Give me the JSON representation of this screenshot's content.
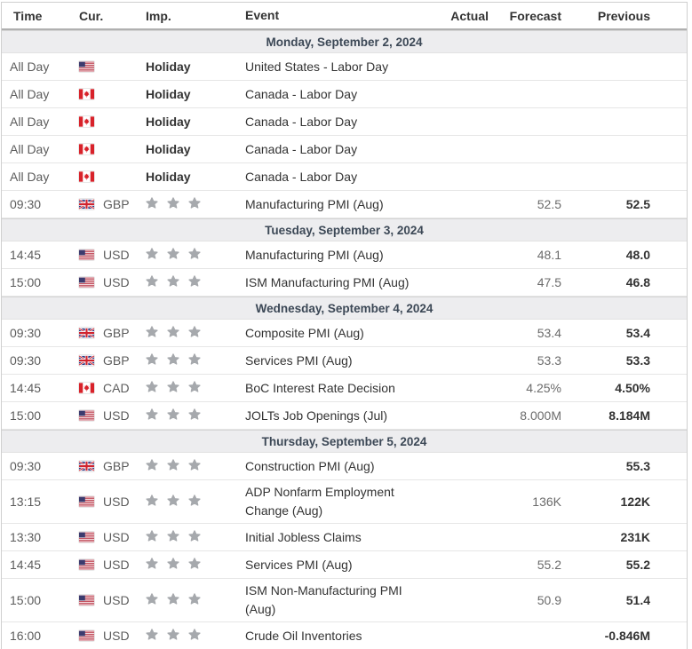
{
  "table": {
    "columns": [
      "Time",
      "Cur.",
      "Imp.",
      "Event",
      "Actual",
      "Forecast",
      "Previous"
    ],
    "sections": [
      {
        "date": "Monday, September 2, 2024",
        "rows": [
          {
            "time": "All Day",
            "flag": "us",
            "currency": "",
            "importance": "Holiday",
            "event": "United States - Labor Day",
            "actual": "",
            "forecast": "",
            "previous": ""
          },
          {
            "time": "All Day",
            "flag": "ca",
            "currency": "",
            "importance": "Holiday",
            "event": "Canada - Labor Day",
            "actual": "",
            "forecast": "",
            "previous": ""
          },
          {
            "time": "All Day",
            "flag": "ca",
            "currency": "",
            "importance": "Holiday",
            "event": "Canada - Labor Day",
            "actual": "",
            "forecast": "",
            "previous": ""
          },
          {
            "time": "All Day",
            "flag": "ca",
            "currency": "",
            "importance": "Holiday",
            "event": "Canada - Labor Day",
            "actual": "",
            "forecast": "",
            "previous": ""
          },
          {
            "time": "All Day",
            "flag": "ca",
            "currency": "",
            "importance": "Holiday",
            "event": "Canada - Labor Day",
            "actual": "",
            "forecast": "",
            "previous": ""
          },
          {
            "time": "09:30",
            "flag": "gb",
            "currency": "GBP",
            "importance": 3,
            "event": "Manufacturing PMI (Aug)",
            "actual": "",
            "forecast": "52.5",
            "previous": "52.5"
          }
        ]
      },
      {
        "date": "Tuesday, September 3, 2024",
        "rows": [
          {
            "time": "14:45",
            "flag": "us",
            "currency": "USD",
            "importance": 3,
            "event": "Manufacturing PMI (Aug)",
            "actual": "",
            "forecast": "48.1",
            "previous": "48.0"
          },
          {
            "time": "15:00",
            "flag": "us",
            "currency": "USD",
            "importance": 3,
            "event": "ISM Manufacturing PMI (Aug)",
            "actual": "",
            "forecast": "47.5",
            "previous": "46.8"
          }
        ]
      },
      {
        "date": "Wednesday, September 4, 2024",
        "rows": [
          {
            "time": "09:30",
            "flag": "gb",
            "currency": "GBP",
            "importance": 3,
            "event": "Composite PMI (Aug)",
            "actual": "",
            "forecast": "53.4",
            "previous": "53.4"
          },
          {
            "time": "09:30",
            "flag": "gb",
            "currency": "GBP",
            "importance": 3,
            "event": "Services PMI (Aug)",
            "actual": "",
            "forecast": "53.3",
            "previous": "53.3"
          },
          {
            "time": "14:45",
            "flag": "ca",
            "currency": "CAD",
            "importance": 3,
            "event": "BoC Interest Rate Decision",
            "actual": "",
            "forecast": "4.25%",
            "previous": "4.50%"
          },
          {
            "time": "15:00",
            "flag": "us",
            "currency": "USD",
            "importance": 3,
            "event": "JOLTs Job Openings (Jul)",
            "actual": "",
            "forecast": "8.000M",
            "previous": "8.184M"
          }
        ]
      },
      {
        "date": "Thursday, September 5, 2024",
        "rows": [
          {
            "time": "09:30",
            "flag": "gb",
            "currency": "GBP",
            "importance": 3,
            "event": "Construction PMI (Aug)",
            "actual": "",
            "forecast": "",
            "previous": "55.3"
          },
          {
            "time": "13:15",
            "flag": "us",
            "currency": "USD",
            "importance": 3,
            "event": "ADP Nonfarm Employment\nChange (Aug)",
            "actual": "",
            "forecast": "136K",
            "previous": "122K"
          },
          {
            "time": "13:30",
            "flag": "us",
            "currency": "USD",
            "importance": 3,
            "event": "Initial Jobless Claims",
            "actual": "",
            "forecast": "",
            "previous": "231K"
          },
          {
            "time": "14:45",
            "flag": "us",
            "currency": "USD",
            "importance": 3,
            "event": "Services PMI (Aug)",
            "actual": "",
            "forecast": "55.2",
            "previous": "55.2"
          },
          {
            "time": "15:00",
            "flag": "us",
            "currency": "USD",
            "importance": 3,
            "event": "ISM Non-Manufacturing PMI\n(Aug)",
            "actual": "",
            "forecast": "50.9",
            "previous": "51.4"
          },
          {
            "time": "16:00",
            "flag": "us",
            "currency": "USD",
            "importance": 3,
            "event": "Crude Oil Inventories",
            "actual": "",
            "forecast": "",
            "previous": "-0.846M"
          }
        ]
      }
    ]
  },
  "icons": {
    "star": "importance-star-icon",
    "flags": {
      "us": "us-flag-icon",
      "ca": "canada-flag-icon",
      "gb": "uk-flag-icon"
    }
  },
  "colors": {
    "star_gray": "#a6a9ad",
    "date_row_bg": "#ededef",
    "date_row_text": "#3c4856",
    "header_text": "#333333",
    "forecast_text": "#6b6b6b",
    "previous_text": "#333333",
    "time_text": "#5c5c5c",
    "row_border": "#e6e6e6",
    "header_border": "#b0b0b0",
    "flag_red_us": "#b22234",
    "flag_blue_us": "#3c3b6e",
    "flag_red_ca": "#d8222a",
    "flag_blue_gb": "#2c3a82",
    "flag_red_gb": "#d0232e"
  }
}
